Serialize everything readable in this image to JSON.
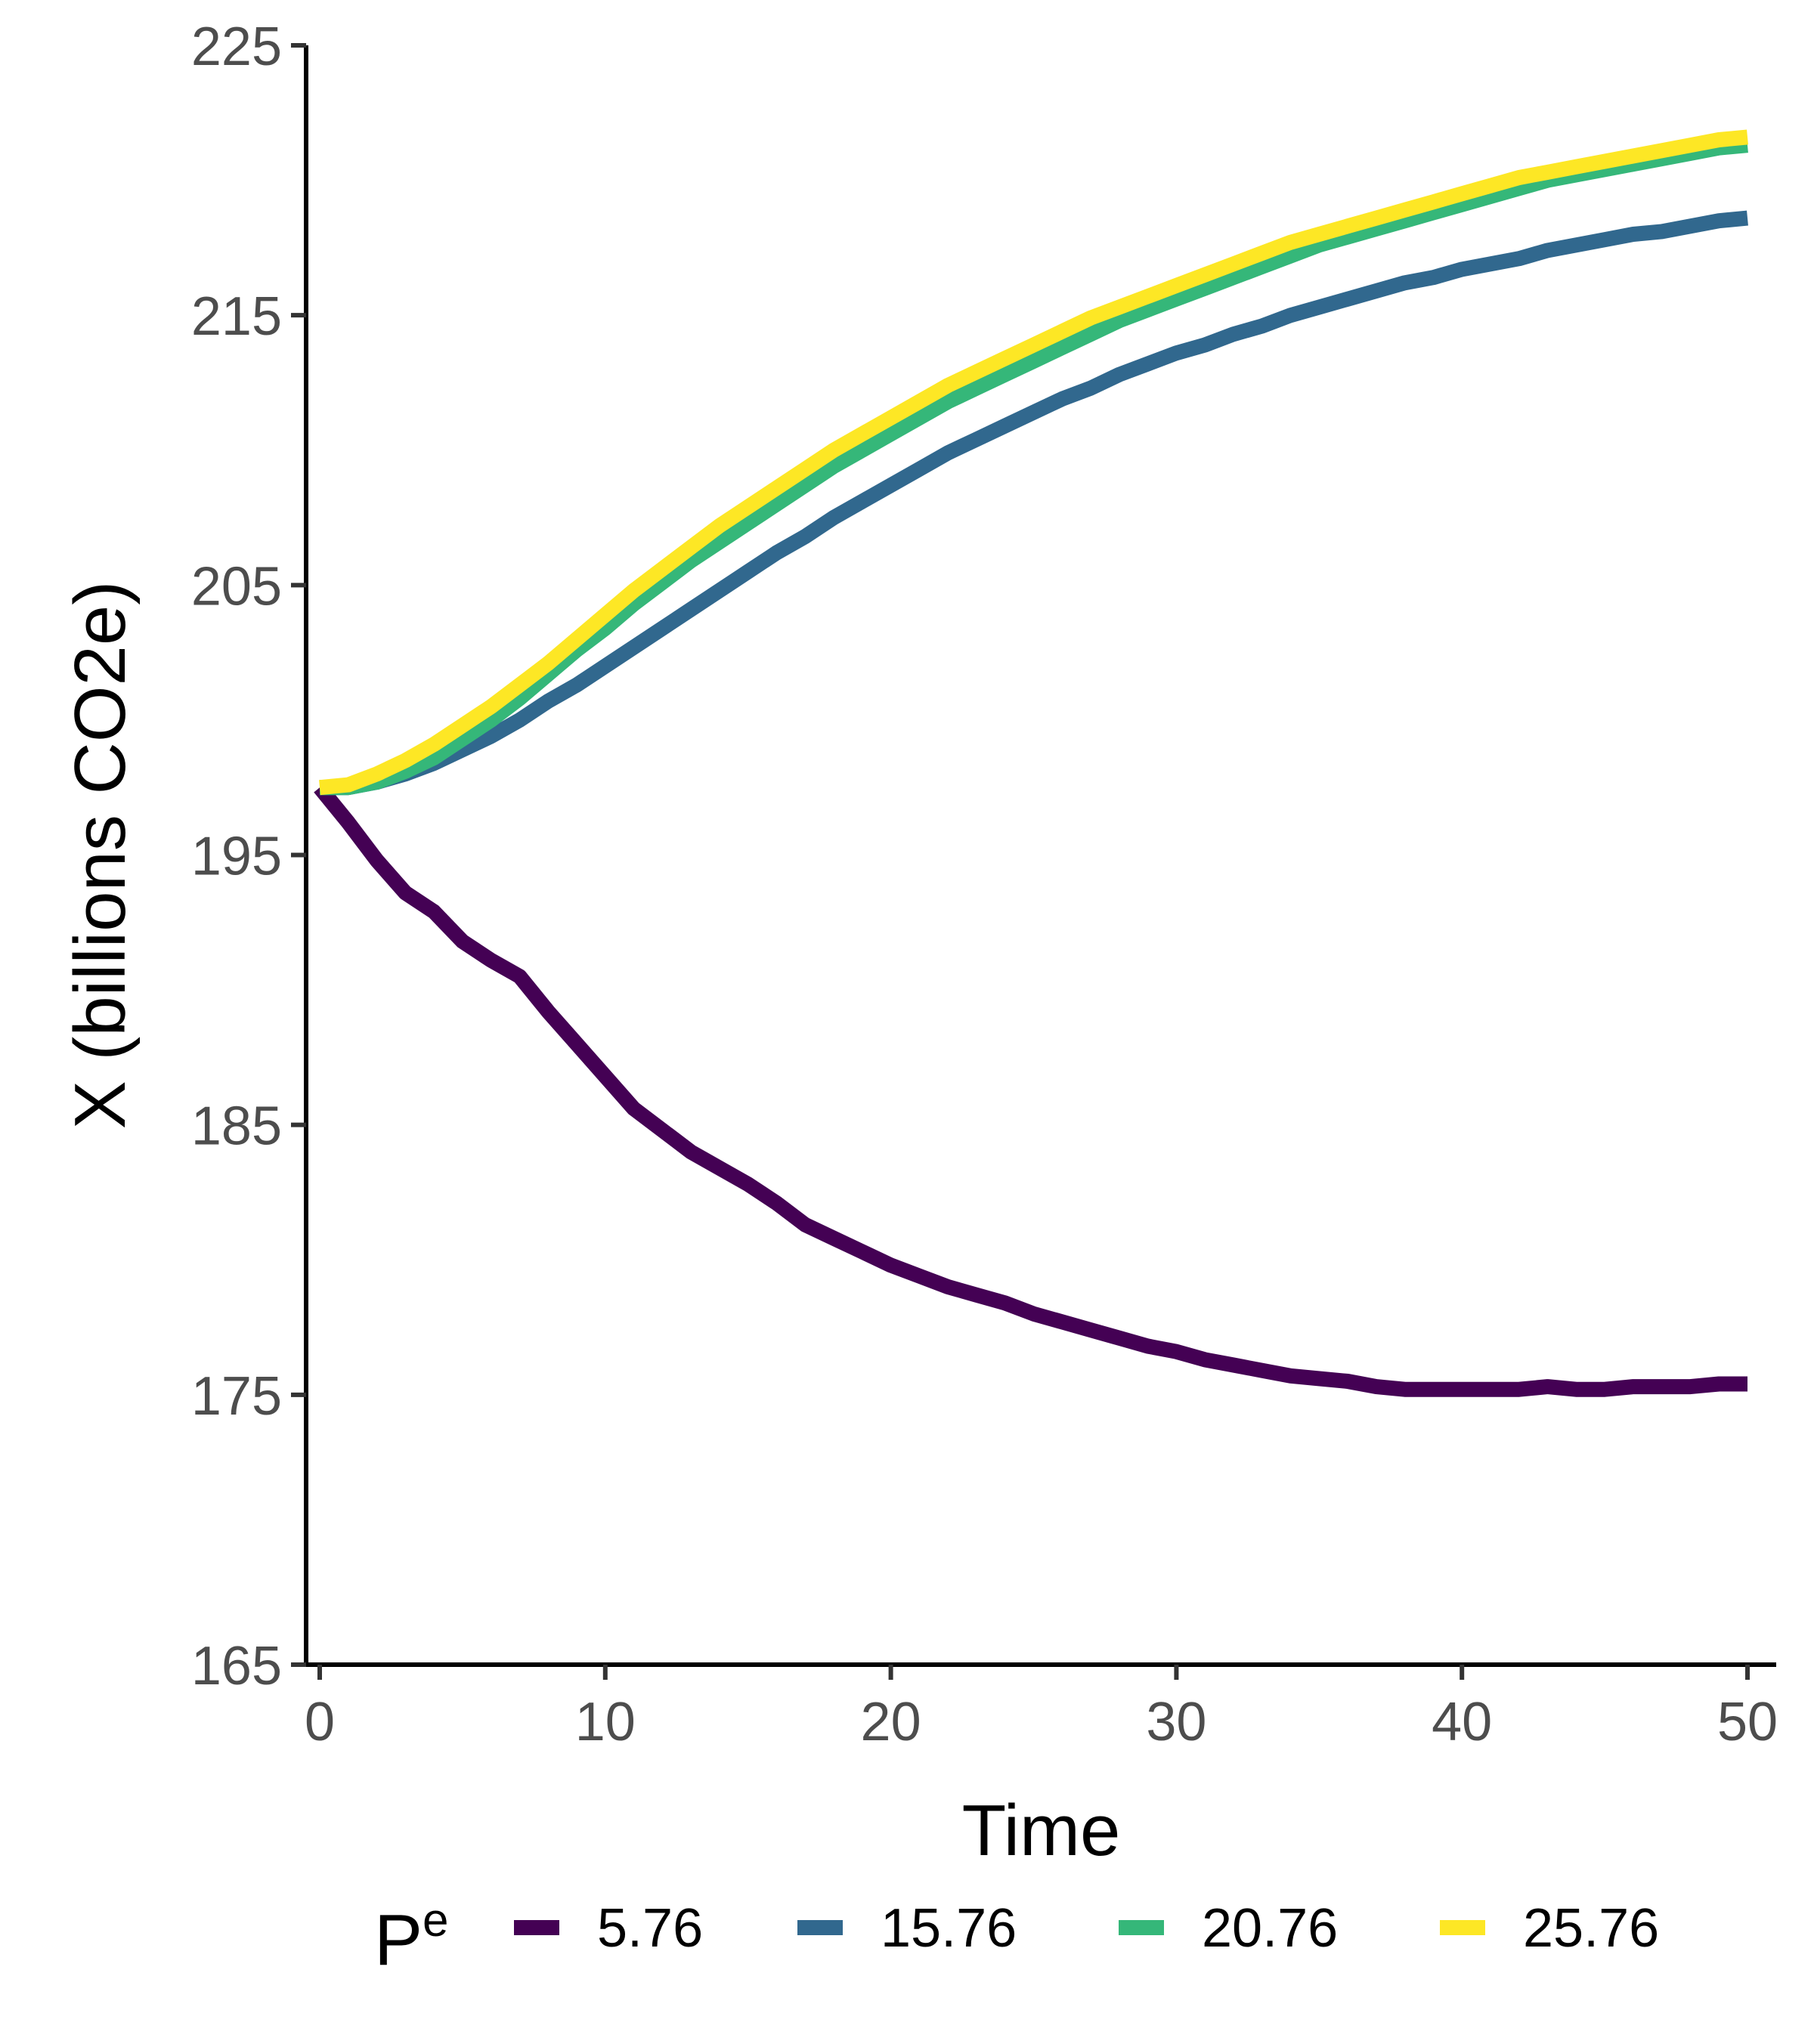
{
  "chart_data": {
    "type": "line",
    "xlabel": "Time",
    "ylabel": "X (billions CO2e)",
    "xlim": [
      0,
      50
    ],
    "ylim": [
      165,
      225
    ],
    "x_ticks": [
      0,
      10,
      20,
      30,
      40,
      50
    ],
    "y_ticks": [
      165,
      175,
      185,
      195,
      205,
      215,
      225
    ],
    "grid": false,
    "legend": {
      "position": "bottom",
      "title": "P",
      "title_superscript": "e"
    },
    "x": [
      0,
      1,
      2,
      3,
      4,
      5,
      6,
      7,
      8,
      9,
      10,
      11,
      12,
      13,
      14,
      15,
      16,
      17,
      18,
      19,
      20,
      21,
      22,
      23,
      24,
      25,
      26,
      27,
      28,
      29,
      30,
      31,
      32,
      33,
      34,
      35,
      36,
      37,
      38,
      39,
      40,
      41,
      42,
      43,
      44,
      45,
      46,
      47,
      48,
      49,
      50
    ],
    "series": [
      {
        "name": "5.76",
        "color": "#440154",
        "values": [
          197.5,
          196.2,
          194.8,
          193.6,
          192.9,
          191.8,
          191.1,
          190.5,
          189.2,
          188.0,
          186.8,
          185.6,
          184.8,
          184.0,
          183.4,
          182.8,
          182.1,
          181.3,
          180.8,
          180.3,
          179.8,
          179.4,
          179.0,
          178.7,
          178.4,
          178.0,
          177.7,
          177.4,
          177.1,
          176.8,
          176.6,
          176.3,
          176.1,
          175.9,
          175.7,
          175.6,
          175.5,
          175.3,
          175.2,
          175.2,
          175.2,
          175.2,
          175.2,
          175.3,
          175.2,
          175.2,
          175.3,
          175.3,
          175.3,
          175.4,
          175.4
        ]
      },
      {
        "name": "15.76",
        "color": "#31688e",
        "values": [
          197.5,
          197.5,
          197.7,
          198.0,
          198.4,
          198.9,
          199.4,
          200.0,
          200.7,
          201.3,
          202.0,
          202.7,
          203.4,
          204.1,
          204.8,
          205.5,
          206.2,
          206.8,
          207.5,
          208.1,
          208.7,
          209.3,
          209.9,
          210.4,
          210.9,
          211.4,
          211.9,
          212.3,
          212.8,
          213.2,
          213.6,
          213.9,
          214.3,
          214.6,
          215.0,
          215.3,
          215.6,
          215.9,
          216.2,
          216.4,
          216.7,
          216.9,
          217.1,
          217.4,
          217.6,
          217.8,
          218.0,
          218.1,
          218.3,
          218.5,
          218.6
        ]
      },
      {
        "name": "20.76",
        "color": "#35b779",
        "values": [
          197.5,
          197.5,
          197.7,
          198.1,
          198.6,
          199.3,
          200.0,
          200.8,
          201.7,
          202.6,
          203.4,
          204.3,
          205.1,
          205.9,
          206.6,
          207.3,
          208.0,
          208.7,
          209.4,
          210.0,
          210.6,
          211.2,
          211.8,
          212.3,
          212.8,
          213.3,
          213.8,
          214.3,
          214.8,
          215.2,
          215.6,
          216.0,
          216.4,
          216.8,
          217.2,
          217.6,
          217.9,
          218.2,
          218.5,
          218.8,
          219.1,
          219.4,
          219.7,
          220.0,
          220.2,
          220.4,
          220.6,
          220.8,
          221.0,
          221.2,
          221.3
        ]
      },
      {
        "name": "25.76",
        "color": "#fde725",
        "values": [
          197.5,
          197.6,
          198.0,
          198.5,
          199.1,
          199.8,
          200.5,
          201.3,
          202.1,
          203.0,
          203.9,
          204.8,
          205.6,
          206.4,
          207.2,
          207.9,
          208.6,
          209.3,
          210.0,
          210.6,
          211.2,
          211.8,
          212.4,
          212.9,
          213.4,
          213.9,
          214.4,
          214.9,
          215.3,
          215.7,
          216.1,
          216.5,
          216.9,
          217.3,
          217.7,
          218.0,
          218.3,
          218.6,
          218.9,
          219.2,
          219.5,
          219.8,
          220.1,
          220.3,
          220.5,
          220.7,
          220.9,
          221.1,
          221.3,
          221.5,
          221.6
        ]
      }
    ]
  }
}
